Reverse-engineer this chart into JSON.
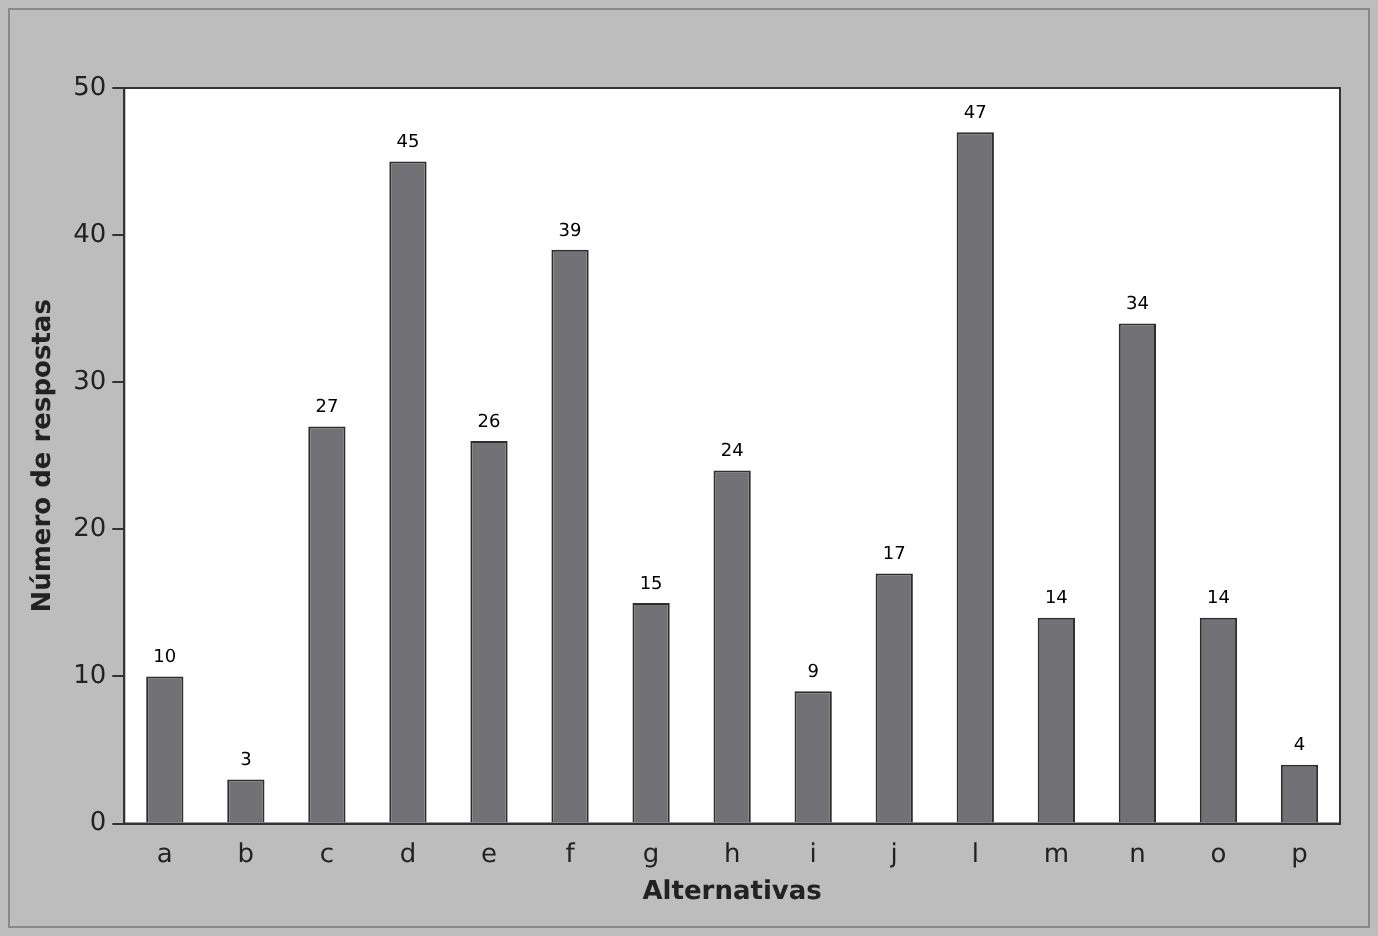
{
  "chart_data": {
    "type": "bar",
    "xlabel": "Alternativas",
    "ylabel": "Número de respostas",
    "categories": [
      "a",
      "b",
      "c",
      "d",
      "e",
      "f",
      "g",
      "h",
      "i",
      "j",
      "l",
      "m",
      "n",
      "o",
      "p"
    ],
    "values": [
      10,
      3,
      27,
      45,
      26,
      39,
      15,
      24,
      9,
      17,
      47,
      14,
      34,
      14,
      4
    ],
    "color": "#727276",
    "ylim": [
      0,
      50
    ],
    "yticks": [
      0,
      10,
      20,
      30,
      40,
      50
    ],
    "grid": false,
    "legend": false,
    "data_labels": true
  }
}
